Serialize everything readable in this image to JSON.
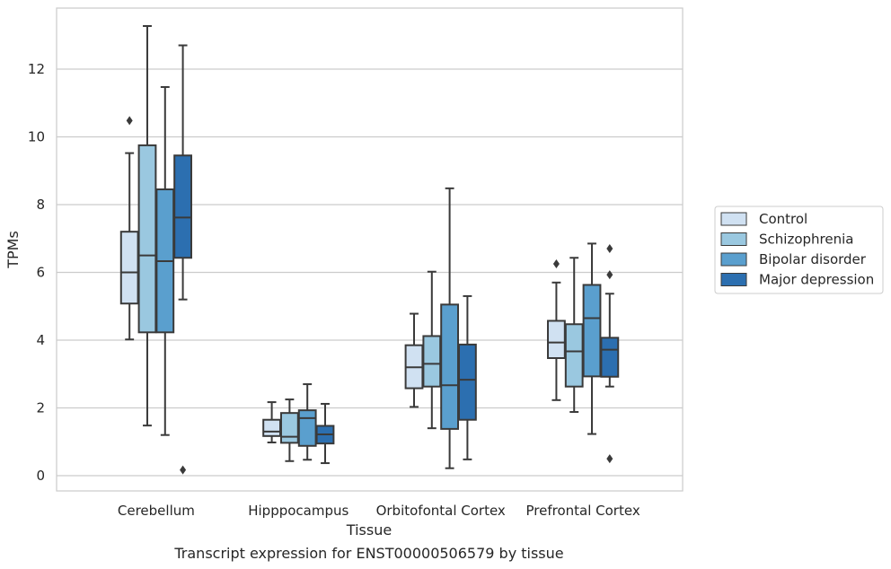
{
  "caption": "Transcript expression for ENST00000506579 by tissue",
  "chart_data": {
    "type": "box",
    "title": "",
    "xlabel": "Tissue",
    "ylabel": "TPMs",
    "categories": [
      "Cerebellum",
      "Hipppocampus",
      "Orbitofontal Cortex",
      "Prefrontal Cortex"
    ],
    "ylim": [
      -0.45,
      13.8
    ],
    "yticks": [
      0,
      2,
      4,
      6,
      8,
      10,
      12
    ],
    "grid": "horizontal",
    "legend_position": "right",
    "series": [
      {
        "name": "Control",
        "color": "#d0e1f2",
        "boxes": [
          {
            "whisker_low": 4.02,
            "q1": 5.08,
            "median": 6.0,
            "q3": 7.2,
            "whisker_high": 9.52,
            "outliers": [
              10.48
            ]
          },
          {
            "whisker_low": 0.98,
            "q1": 1.17,
            "median": 1.3,
            "q3": 1.65,
            "whisker_high": 2.17,
            "outliers": []
          },
          {
            "whisker_low": 2.03,
            "q1": 2.58,
            "median": 3.2,
            "q3": 3.85,
            "whisker_high": 4.78,
            "outliers": []
          },
          {
            "whisker_low": 2.23,
            "q1": 3.47,
            "median": 3.93,
            "q3": 4.57,
            "whisker_high": 5.7,
            "outliers": [
              6.25
            ]
          }
        ]
      },
      {
        "name": "Schizophrenia",
        "color": "#9ac8e0",
        "boxes": [
          {
            "whisker_low": 1.48,
            "q1": 4.23,
            "median": 6.5,
            "q3": 9.75,
            "whisker_high": 13.27,
            "outliers": []
          },
          {
            "whisker_low": 0.43,
            "q1": 0.97,
            "median": 1.15,
            "q3": 1.85,
            "whisker_high": 2.25,
            "outliers": []
          },
          {
            "whisker_low": 1.4,
            "q1": 2.63,
            "median": 3.3,
            "q3": 4.12,
            "whisker_high": 6.02,
            "outliers": []
          },
          {
            "whisker_low": 1.88,
            "q1": 2.63,
            "median": 3.67,
            "q3": 4.47,
            "whisker_high": 6.43,
            "outliers": []
          }
        ]
      },
      {
        "name": "Bipolar disorder",
        "color": "#5a9fce",
        "boxes": [
          {
            "whisker_low": 1.2,
            "q1": 4.23,
            "median": 6.33,
            "q3": 8.45,
            "whisker_high": 11.47,
            "outliers": []
          },
          {
            "whisker_low": 0.47,
            "q1": 0.88,
            "median": 1.7,
            "q3": 1.93,
            "whisker_high": 2.7,
            "outliers": []
          },
          {
            "whisker_low": 0.22,
            "q1": 1.38,
            "median": 2.67,
            "q3": 5.05,
            "whisker_high": 8.48,
            "outliers": []
          },
          {
            "whisker_low": 1.23,
            "q1": 2.93,
            "median": 4.65,
            "q3": 5.63,
            "whisker_high": 6.85,
            "outliers": []
          }
        ]
      },
      {
        "name": "Major depression",
        "color": "#2c6fb0",
        "boxes": [
          {
            "whisker_low": 5.2,
            "q1": 6.43,
            "median": 7.62,
            "q3": 9.45,
            "whisker_high": 12.7,
            "outliers": [
              0.17
            ]
          },
          {
            "whisker_low": 0.37,
            "q1": 0.95,
            "median": 1.22,
            "q3": 1.47,
            "whisker_high": 2.12,
            "outliers": []
          },
          {
            "whisker_low": 0.48,
            "q1": 1.65,
            "median": 2.83,
            "q3": 3.87,
            "whisker_high": 5.3,
            "outliers": []
          },
          {
            "whisker_low": 2.63,
            "q1": 2.92,
            "median": 3.72,
            "q3": 4.07,
            "whisker_high": 5.37,
            "outliers": [
              6.7,
              5.93,
              0.5
            ]
          }
        ]
      }
    ]
  }
}
